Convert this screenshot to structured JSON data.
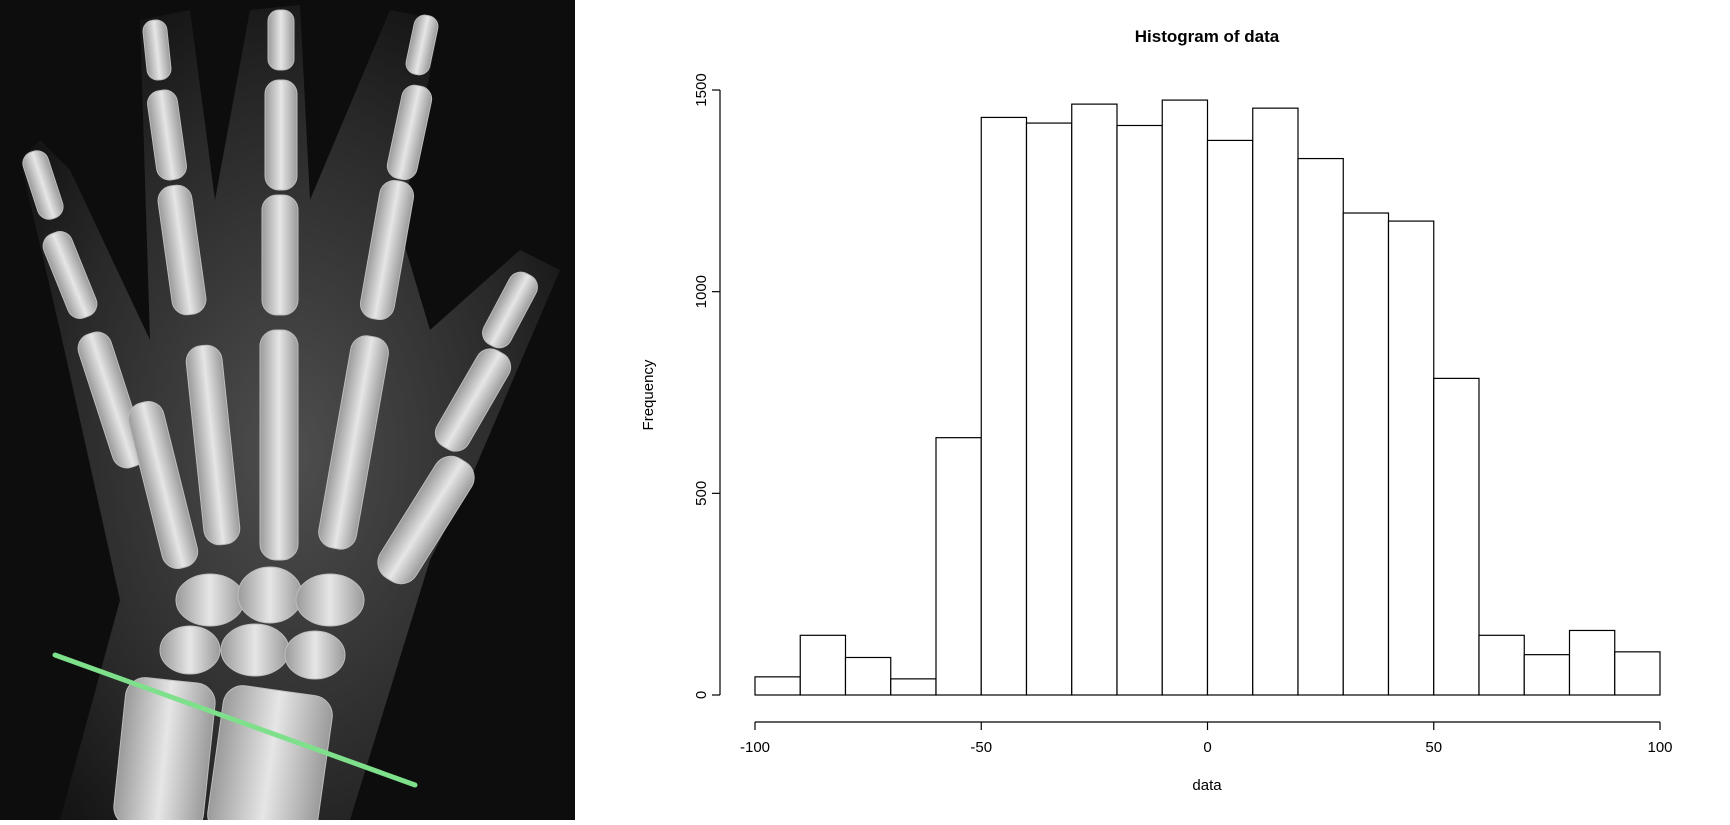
{
  "xray": {
    "background_color": "#0d0d0d",
    "bone_color": "#d8d8d8",
    "marker_line_color": "#7ee08a"
  },
  "chart_data": {
    "type": "bar",
    "title": "Histogram of data",
    "xlabel": "data",
    "ylabel": "Frequency",
    "xlim": [
      -100,
      100
    ],
    "ylim": [
      0,
      1500
    ],
    "xticks": [
      -100,
      -50,
      0,
      50,
      100
    ],
    "yticks": [
      0,
      500,
      1000,
      1500
    ],
    "xtick_labels": [
      "-100",
      "-50",
      "0",
      "50",
      "100"
    ],
    "ytick_labels": [
      "0",
      "500",
      "1000",
      "1500"
    ],
    "bin_edges": [
      -100,
      -90,
      -80,
      -70,
      -60,
      -50,
      -40,
      -30,
      -20,
      -10,
      0,
      10,
      20,
      30,
      40,
      50,
      60,
      70,
      80,
      90,
      100
    ],
    "values": [
      45,
      148,
      93,
      40,
      638,
      1432,
      1418,
      1465,
      1412,
      1475,
      1375,
      1455,
      1330,
      1195,
      1175,
      785,
      148,
      100,
      160,
      107
    ],
    "grid": false,
    "bar_fill": "#ffffff",
    "bar_stroke": "#000000"
  }
}
